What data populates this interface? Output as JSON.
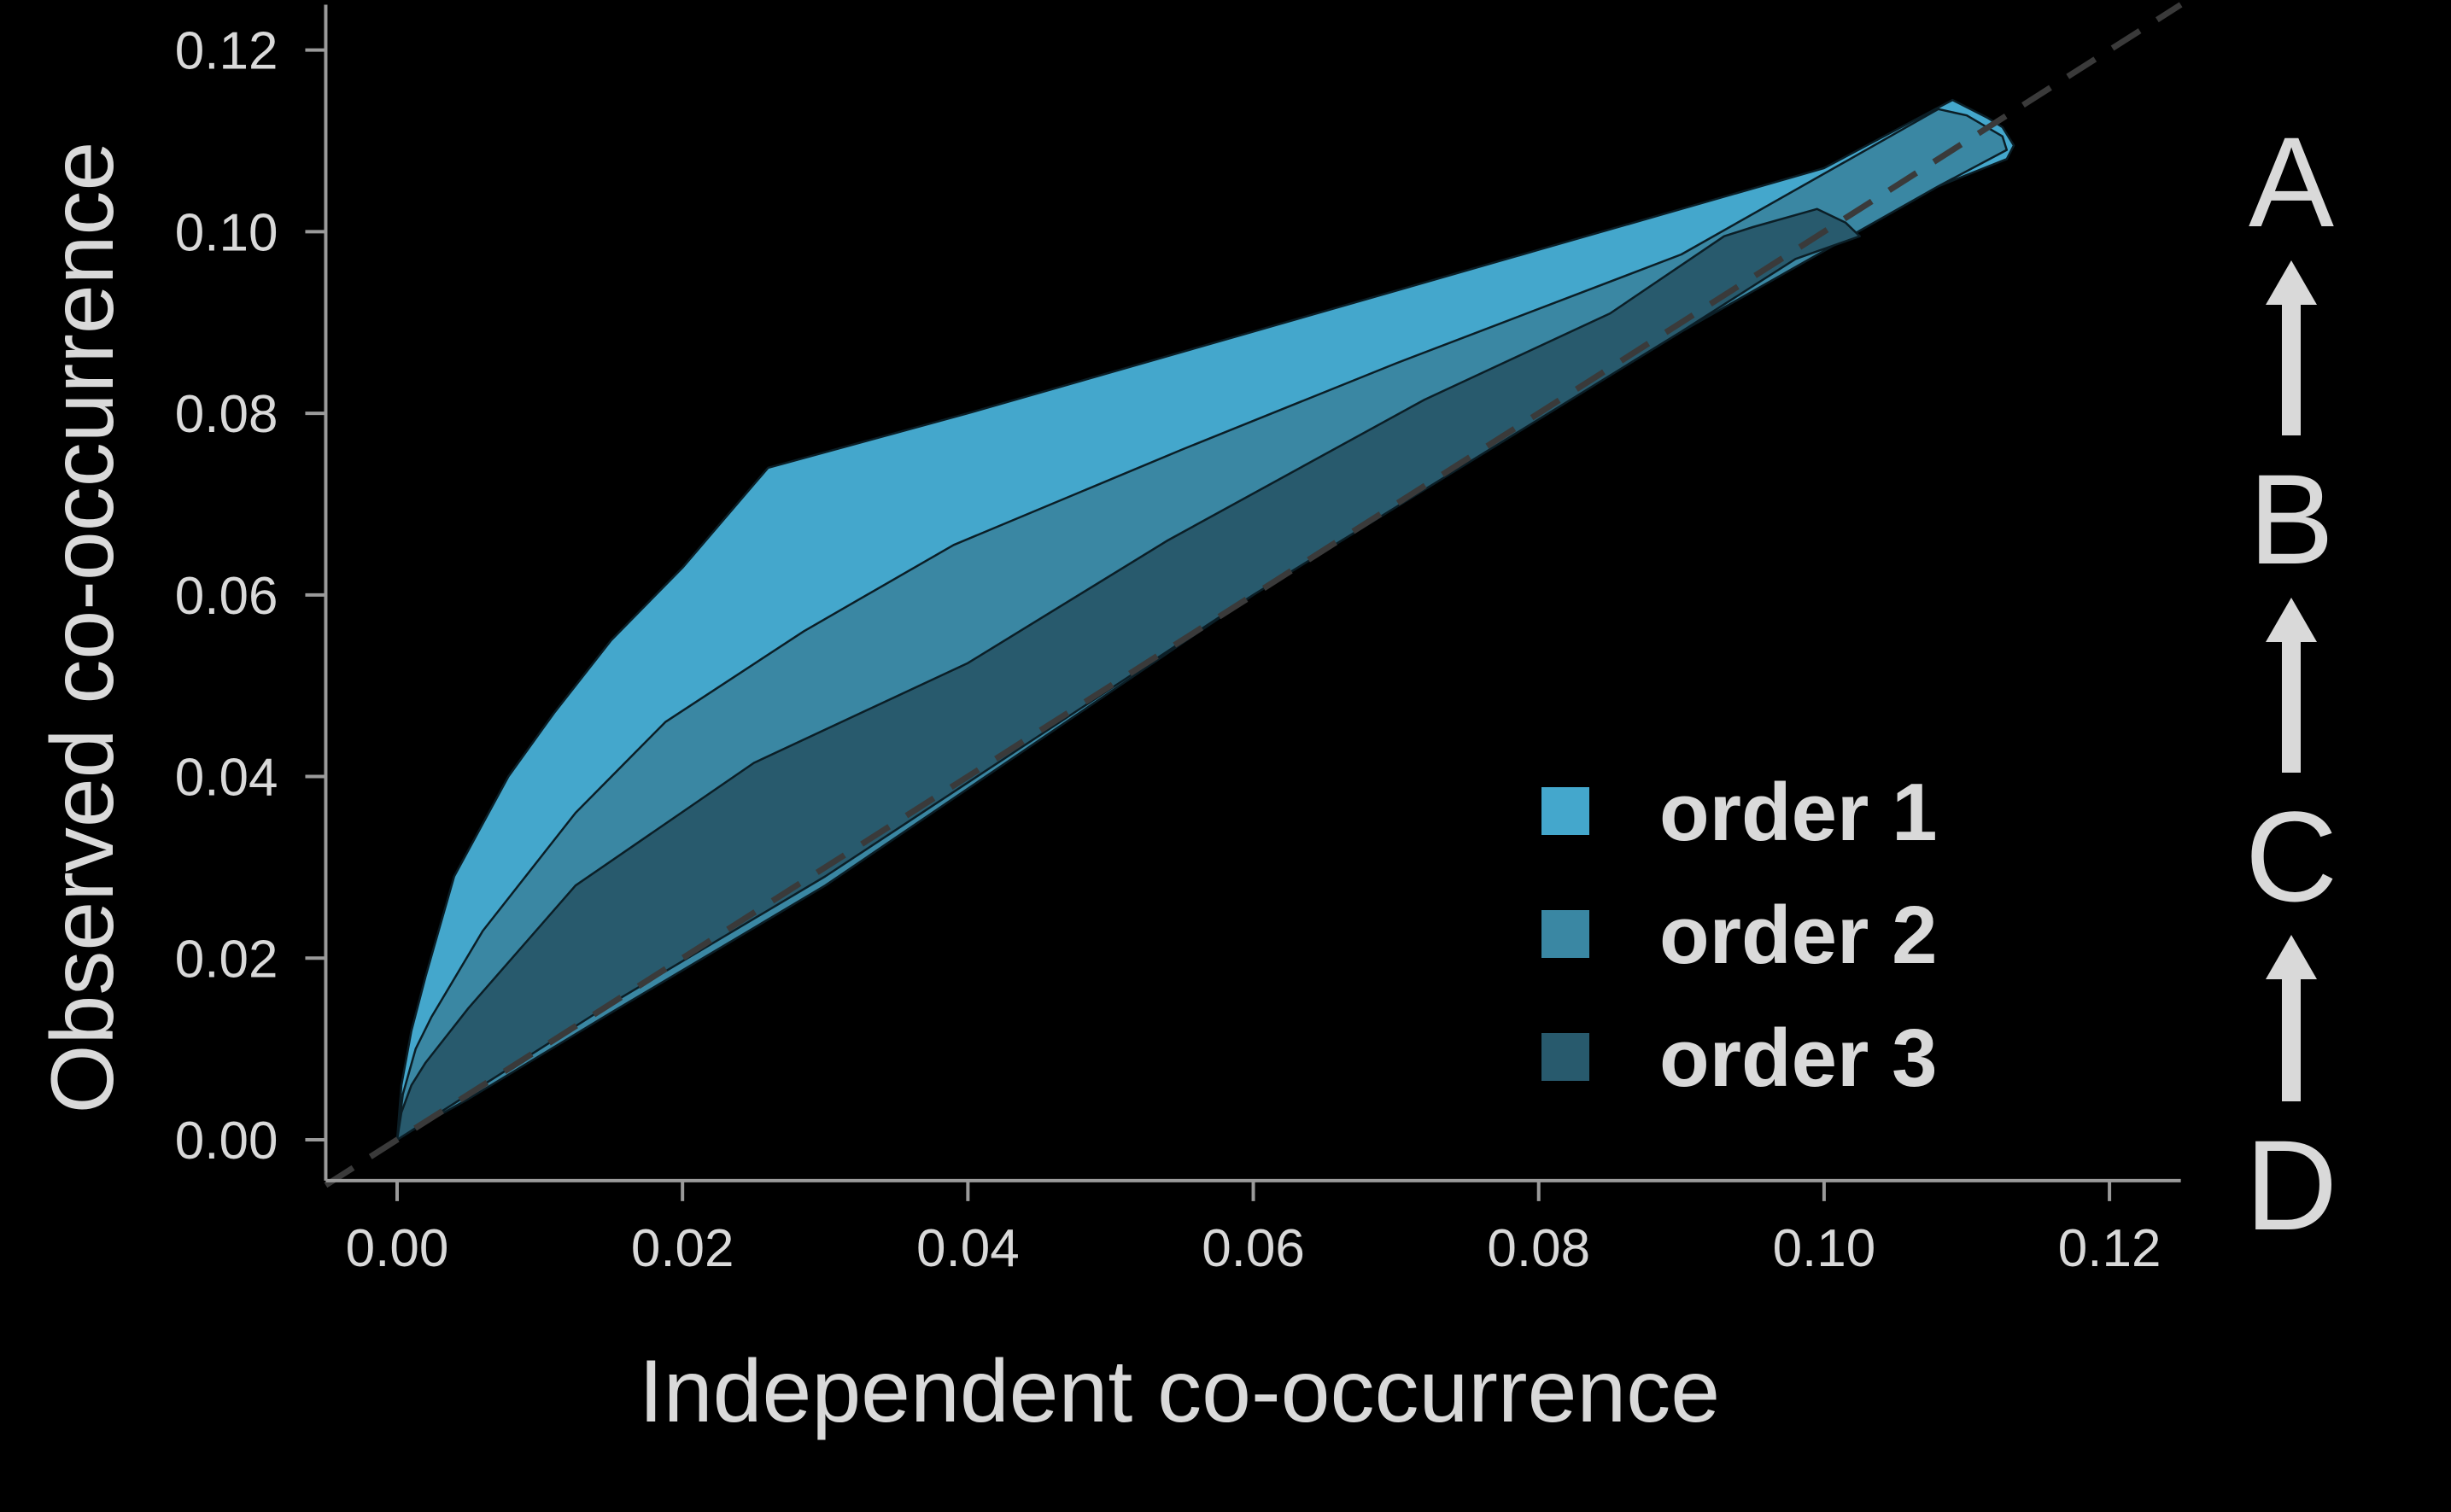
{
  "chart_data": {
    "type": "area",
    "xlabel": "Independent co-occurrence",
    "ylabel": "Observed co-occurrence",
    "xlim": [
      -0.005,
      0.125
    ],
    "ylim": [
      -0.0045,
      0.125
    ],
    "x_ticks": [
      "0.00",
      "0.02",
      "0.04",
      "0.06",
      "0.08",
      "0.10",
      "0.12"
    ],
    "y_ticks": [
      "0.00",
      "0.02",
      "0.04",
      "0.06",
      "0.08",
      "0.10",
      "0.12"
    ],
    "grid": false,
    "legend": {
      "placement": "lower-right",
      "entries": [
        {
          "label": "order 1",
          "color": "#44a7cc"
        },
        {
          "label": "order 2",
          "color": "#3a87a3"
        },
        {
          "label": "order 3",
          "color": "#285a6d"
        }
      ]
    },
    "reference_line": {
      "style": "dashed",
      "color": "#3a3a3a",
      "from": [
        -0.005,
        -0.005
      ],
      "to": [
        0.125,
        0.125
      ]
    },
    "series": [
      {
        "name": "order 1",
        "color": "#44a7cc",
        "polygon": [
          [
            0.0,
            0.0
          ],
          [
            0.0003,
            0.006
          ],
          [
            0.001,
            0.012
          ],
          [
            0.002,
            0.018
          ],
          [
            0.004,
            0.029
          ],
          [
            0.0078,
            0.04
          ],
          [
            0.011,
            0.047
          ],
          [
            0.015,
            0.055
          ],
          [
            0.02,
            0.063
          ],
          [
            0.026,
            0.074
          ],
          [
            0.04,
            0.08
          ],
          [
            0.06,
            0.089
          ],
          [
            0.08,
            0.098
          ],
          [
            0.1,
            0.107
          ],
          [
            0.109,
            0.1145
          ],
          [
            0.1115,
            0.1125
          ],
          [
            0.1125,
            0.1115
          ],
          [
            0.1133,
            0.1095
          ],
          [
            0.1128,
            0.108
          ],
          [
            0.108,
            0.105
          ],
          [
            0.09,
            0.089
          ],
          [
            0.06,
            0.06
          ],
          [
            0.03,
            0.028
          ],
          [
            0.015,
            0.014
          ],
          [
            0.005,
            0.0045
          ],
          [
            0.001,
            0.001
          ]
        ]
      },
      {
        "name": "order 2",
        "color": "#3a87a3",
        "polygon": [
          [
            0.0,
            0.0
          ],
          [
            0.0004,
            0.005
          ],
          [
            0.0013,
            0.01
          ],
          [
            0.0024,
            0.0135
          ],
          [
            0.006,
            0.023
          ],
          [
            0.0125,
            0.036
          ],
          [
            0.0188,
            0.046
          ],
          [
            0.0285,
            0.056
          ],
          [
            0.039,
            0.0655
          ],
          [
            0.055,
            0.076
          ],
          [
            0.07,
            0.0855
          ],
          [
            0.09,
            0.0975
          ],
          [
            0.108,
            0.1135
          ],
          [
            0.11,
            0.1128
          ],
          [
            0.1125,
            0.1105
          ],
          [
            0.1128,
            0.109
          ],
          [
            0.108,
            0.105
          ],
          [
            0.09,
            0.089
          ],
          [
            0.06,
            0.06
          ],
          [
            0.03,
            0.028
          ],
          [
            0.015,
            0.014
          ],
          [
            0.005,
            0.0045
          ],
          [
            0.001,
            0.001
          ]
        ]
      },
      {
        "name": "order 3",
        "color": "#285a6d",
        "polygon": [
          [
            0.0,
            0.0
          ],
          [
            0.0003,
            0.003
          ],
          [
            0.001,
            0.006
          ],
          [
            0.002,
            0.0085
          ],
          [
            0.005,
            0.0145
          ],
          [
            0.0125,
            0.028
          ],
          [
            0.025,
            0.0415
          ],
          [
            0.04,
            0.0525
          ],
          [
            0.054,
            0.066
          ],
          [
            0.072,
            0.0815
          ],
          [
            0.085,
            0.091
          ],
          [
            0.093,
            0.0995
          ],
          [
            0.095,
            0.1005
          ],
          [
            0.0995,
            0.1025
          ],
          [
            0.1015,
            0.101
          ],
          [
            0.1025,
            0.0995
          ],
          [
            0.098,
            0.097
          ],
          [
            0.09,
            0.089
          ],
          [
            0.06,
            0.06
          ],
          [
            0.03,
            0.029
          ],
          [
            0.015,
            0.015
          ],
          [
            0.005,
            0.005
          ],
          [
            0.001,
            0.001
          ]
        ]
      }
    ]
  },
  "side_scale": {
    "letters": [
      "A",
      "B",
      "C",
      "D"
    ],
    "arrow_direction": "up"
  }
}
